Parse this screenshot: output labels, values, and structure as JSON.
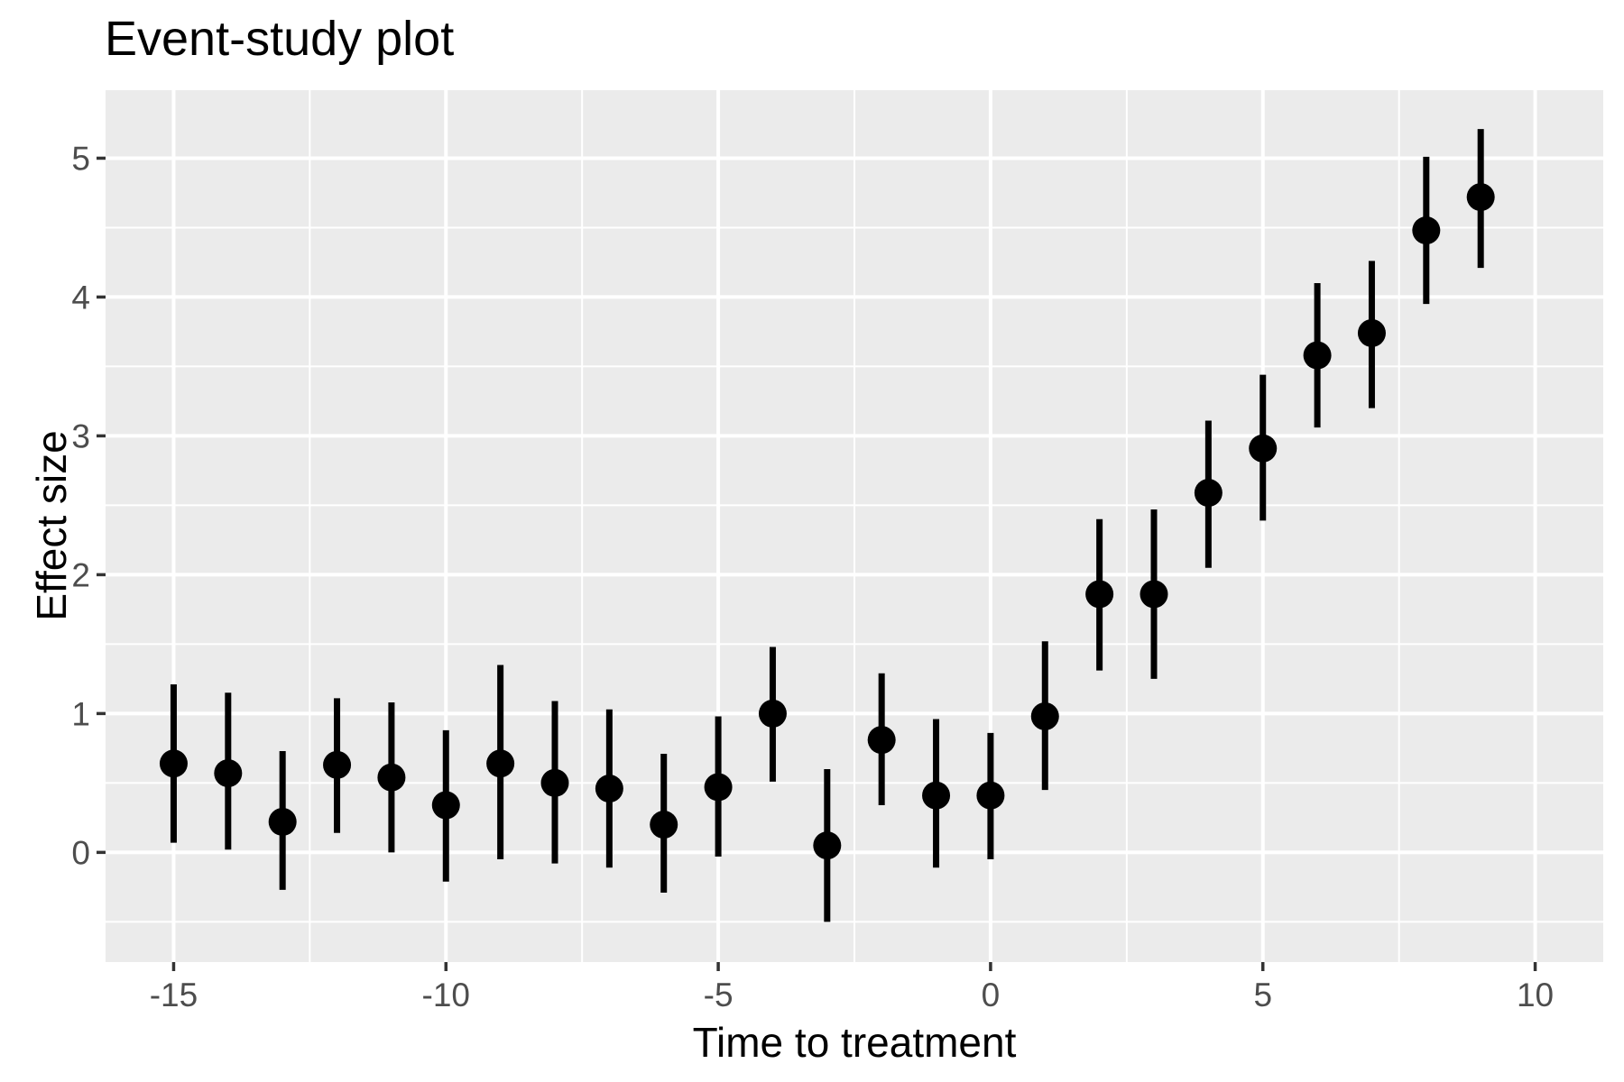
{
  "title": "Event-study plot",
  "chart_data": {
    "type": "scatter",
    "subtype": "pointrange-event-study",
    "title": "Event-study plot",
    "xlabel": "Time to treatment",
    "ylabel": "Effect size",
    "legend": "none",
    "grid": "white major and minor gridlines on grey panel",
    "xlim": [
      -16.25,
      11.25
    ],
    "ylim": [
      -0.79,
      5.49
    ],
    "x_major_ticks": [
      -15,
      -10,
      -5,
      0,
      5,
      10
    ],
    "x_tick_labels": [
      "-15",
      "-10",
      "-5",
      "0",
      "5",
      "10"
    ],
    "x_minor_ticks": [
      -12.5,
      -7.5,
      -2.5,
      2.5,
      7.5
    ],
    "y_major_ticks": [
      0,
      1,
      2,
      3,
      4,
      5
    ],
    "y_tick_labels": [
      "0",
      "1",
      "2",
      "3",
      "4",
      "5"
    ],
    "y_minor_ticks": [
      -0.5,
      0.5,
      1.5,
      2.5,
      3.5,
      4.5
    ],
    "points": [
      {
        "x": -15,
        "y": 0.64,
        "lo": 0.07,
        "hi": 1.21
      },
      {
        "x": -14,
        "y": 0.57,
        "lo": 0.02,
        "hi": 1.15
      },
      {
        "x": -13,
        "y": 0.22,
        "lo": -0.27,
        "hi": 0.73
      },
      {
        "x": -12,
        "y": 0.63,
        "lo": 0.14,
        "hi": 1.11
      },
      {
        "x": -11,
        "y": 0.54,
        "lo": 0.0,
        "hi": 1.08
      },
      {
        "x": -10,
        "y": 0.34,
        "lo": -0.21,
        "hi": 0.88
      },
      {
        "x": -9,
        "y": 0.64,
        "lo": -0.05,
        "hi": 1.35
      },
      {
        "x": -8,
        "y": 0.5,
        "lo": -0.08,
        "hi": 1.09
      },
      {
        "x": -7,
        "y": 0.46,
        "lo": -0.11,
        "hi": 1.03
      },
      {
        "x": -6,
        "y": 0.2,
        "lo": -0.29,
        "hi": 0.71
      },
      {
        "x": -5,
        "y": 0.47,
        "lo": -0.03,
        "hi": 0.98
      },
      {
        "x": -4,
        "y": 1.0,
        "lo": 0.51,
        "hi": 1.48
      },
      {
        "x": -3,
        "y": 0.05,
        "lo": -0.5,
        "hi": 0.6
      },
      {
        "x": -2,
        "y": 0.81,
        "lo": 0.34,
        "hi": 1.29
      },
      {
        "x": -1,
        "y": 0.41,
        "lo": -0.11,
        "hi": 0.96
      },
      {
        "x": 0,
        "y": 0.41,
        "lo": -0.05,
        "hi": 0.86
      },
      {
        "x": 1,
        "y": 0.98,
        "lo": 0.45,
        "hi": 1.52
      },
      {
        "x": 2,
        "y": 1.86,
        "lo": 1.31,
        "hi": 2.4
      },
      {
        "x": 3,
        "y": 1.86,
        "lo": 1.25,
        "hi": 2.47
      },
      {
        "x": 4,
        "y": 2.59,
        "lo": 2.05,
        "hi": 3.11
      },
      {
        "x": 5,
        "y": 2.91,
        "lo": 2.39,
        "hi": 3.44
      },
      {
        "x": 6,
        "y": 3.58,
        "lo": 3.06,
        "hi": 4.1
      },
      {
        "x": 7,
        "y": 3.74,
        "lo": 3.2,
        "hi": 4.26
      },
      {
        "x": 8,
        "y": 4.48,
        "lo": 3.95,
        "hi": 5.01
      },
      {
        "x": 9,
        "y": 4.72,
        "lo": 4.21,
        "hi": 5.21
      }
    ],
    "colors": {
      "background": "#FFFFFF",
      "panel": "#EBEBEB",
      "gridline": "#FFFFFF",
      "point": "#000000",
      "error_bar": "#000000",
      "tick_mark": "#333333",
      "tick_label": "#4D4D4D",
      "axis_title": "#000000",
      "plot_title": "#000000"
    }
  }
}
